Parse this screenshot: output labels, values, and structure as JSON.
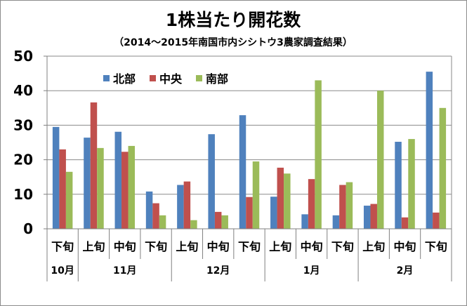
{
  "chart_data": {
    "type": "bar",
    "title": "1株当たり開花数",
    "subtitle": "（2014～2015年南国市内シシトウ3農家調査結果）",
    "xlabel": "",
    "ylabel": "",
    "ylim": [
      0,
      50
    ],
    "yticks": [
      0,
      10,
      20,
      30,
      40,
      50
    ],
    "grid": true,
    "legend_position": "top-left",
    "categories": [
      "下旬",
      "上旬",
      "中旬",
      "下旬",
      "上旬",
      "中旬",
      "下旬",
      "上旬",
      "中旬",
      "下旬",
      "上旬",
      "中旬",
      "下旬"
    ],
    "month_groups": [
      {
        "label": "10月",
        "count": 1
      },
      {
        "label": "11月",
        "count": 3
      },
      {
        "label": "12月",
        "count": 3
      },
      {
        "label": "1月",
        "count": 3
      },
      {
        "label": "2月",
        "count": 3
      }
    ],
    "series": [
      {
        "name": "北部",
        "color": "#4f81bd",
        "values": [
          29.5,
          26.4,
          28.1,
          10.8,
          12.7,
          27.4,
          32.9,
          9.3,
          4.2,
          3.9,
          6.7,
          25.2,
          45.5
        ]
      },
      {
        "name": "中央",
        "color": "#c0504d",
        "values": [
          23.0,
          36.6,
          22.3,
          7.4,
          13.7,
          4.9,
          9.2,
          17.7,
          14.4,
          12.7,
          7.2,
          3.3,
          4.7
        ]
      },
      {
        "name": "南部",
        "color": "#9bbb59",
        "values": [
          16.5,
          23.4,
          24.0,
          3.9,
          2.5,
          3.9,
          19.5,
          16.0,
          43.0,
          13.5,
          40.0,
          26.0,
          35.0
        ]
      }
    ]
  }
}
